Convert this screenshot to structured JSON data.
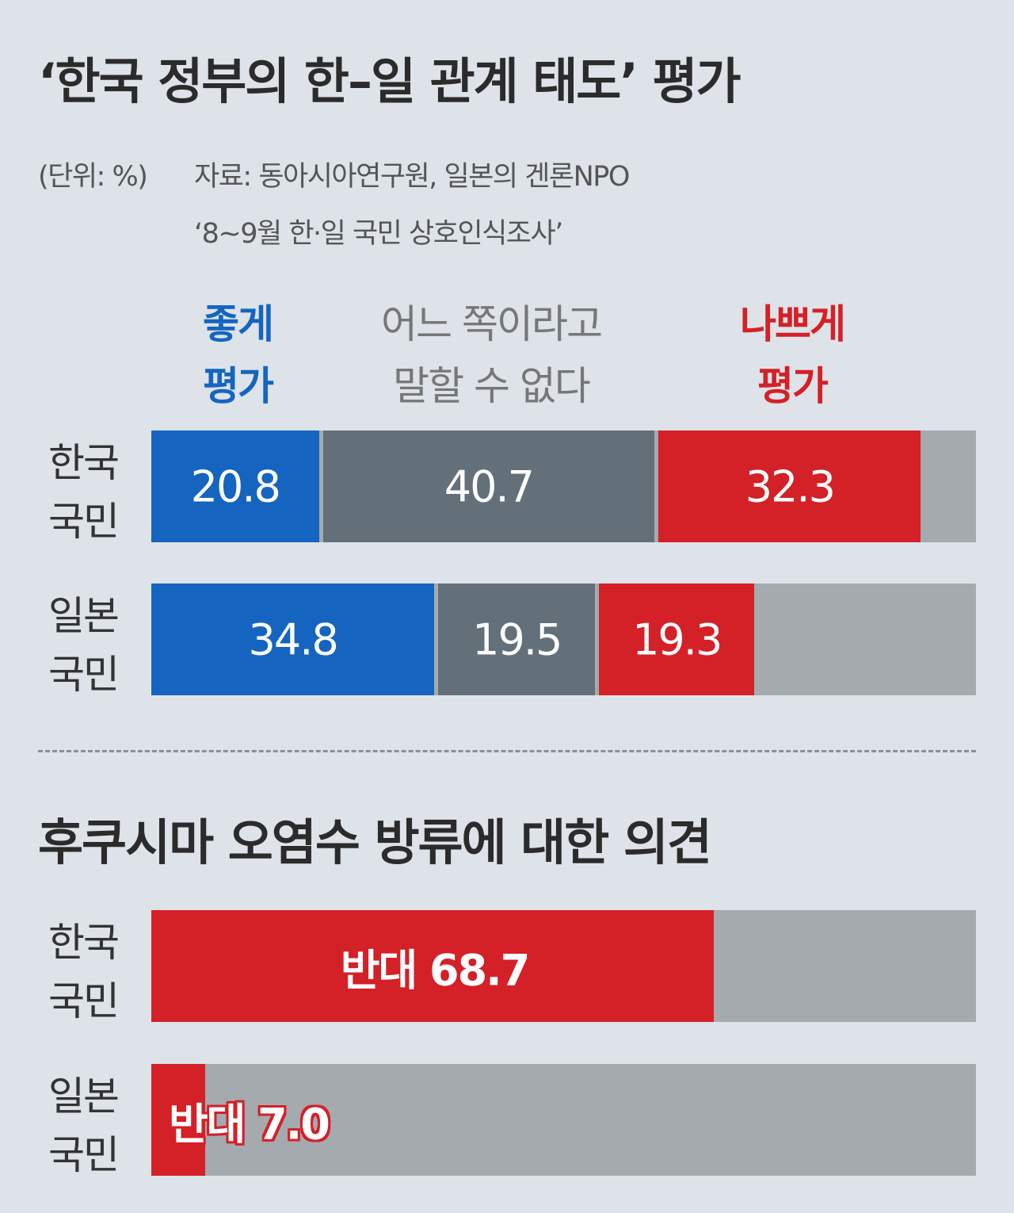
{
  "chart_data": [
    {
      "type": "bar",
      "stacked": true,
      "orientation": "horizontal",
      "title": "‘한국 정부의 한–일 관계 태도’ 평가",
      "unit_note": "(단위: %)",
      "source_line1": "자료: 동아시아연구원, 일본의 겐론NPO",
      "source_line2": "‘8~9월 한·일 국민 상호인식조사’",
      "categories": [
        {
          "line1": "한국",
          "line2": "국민"
        },
        {
          "line1": "일본",
          "line2": "국민"
        }
      ],
      "series": [
        {
          "name_line1": "좋게",
          "name_line2": "평가",
          "color": "#1565c0",
          "values": [
            20.8,
            34.8
          ],
          "labels": [
            "20.8",
            "34.8"
          ]
        },
        {
          "name_line1": "어느 쪽이라고",
          "name_line2": "말할 수 없다",
          "color": "#637079",
          "values": [
            40.7,
            19.5
          ],
          "labels": [
            "40.7",
            "19.5"
          ]
        },
        {
          "name_line1": "나쁘게",
          "name_line2": "평가",
          "color": "#d42027",
          "values": [
            32.3,
            19.3
          ],
          "labels": [
            "32.3",
            "19.3"
          ]
        }
      ],
      "remainder_color": "#a5aaaf",
      "xlim": [
        0,
        100
      ]
    },
    {
      "type": "bar",
      "orientation": "horizontal",
      "title": "후쿠시마 오염수 방류에 대한 의견",
      "categories": [
        {
          "line1": "한국",
          "line2": "국민"
        },
        {
          "line1": "일본",
          "line2": "국민"
        }
      ],
      "series": [
        {
          "color": "#d42027",
          "values": [
            68.7,
            7.0
          ],
          "labels": [
            "반대 68.7",
            "반대 7.0"
          ]
        }
      ],
      "remainder_color": "#a5aaaf",
      "xlim": [
        0,
        100
      ]
    }
  ]
}
